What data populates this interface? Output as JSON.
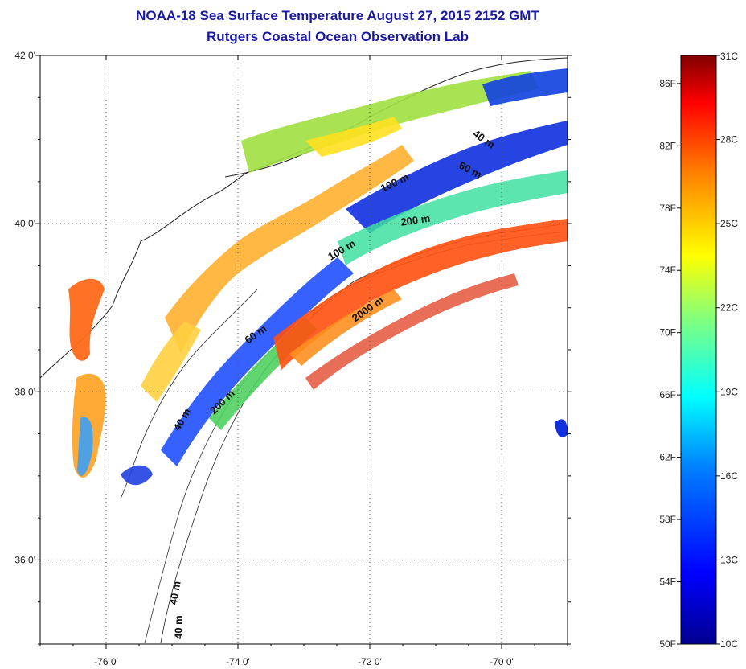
{
  "map": {
    "title": "NOAA-18 Sea Surface Temperature August 27, 2015 2152 GMT",
    "subtitle": "Rutgers Coastal Ocean Observation Lab",
    "x_ticks": [
      {
        "value": -76,
        "label": "-76 0'"
      },
      {
        "value": -74,
        "label": "-74 0'"
      },
      {
        "value": -72,
        "label": "-72 0'"
      },
      {
        "value": -70,
        "label": "-70 0'"
      }
    ],
    "y_ticks": [
      {
        "value": 42,
        "label": "42 0'"
      },
      {
        "value": 40,
        "label": "40 0'"
      },
      {
        "value": 38,
        "label": "38 0'"
      },
      {
        "value": 36,
        "label": "36 0'"
      }
    ],
    "lon_range": [
      -77,
      -69
    ],
    "lat_range": [
      35,
      42
    ],
    "grid": "dotted",
    "contour_labels": [
      {
        "text": "40 m",
        "lon": -70.3,
        "lat": 40.97,
        "angle": 35
      },
      {
        "text": "60 m",
        "lon": -70.5,
        "lat": 40.6,
        "angle": 28
      },
      {
        "text": "100 m",
        "lon": -71.6,
        "lat": 40.45,
        "angle": -25
      },
      {
        "text": "200 m",
        "lon": -71.3,
        "lat": 40.0,
        "angle": -8
      },
      {
        "text": "100 m",
        "lon": -72.4,
        "lat": 39.65,
        "angle": -30
      },
      {
        "text": "2000 m",
        "lon": -72.0,
        "lat": 38.95,
        "angle": -35
      },
      {
        "text": "60 m",
        "lon": -73.7,
        "lat": 38.65,
        "angle": -35
      },
      {
        "text": "200 m",
        "lon": -74.2,
        "lat": 37.85,
        "angle": -45
      },
      {
        "text": "40 m",
        "lon": -74.8,
        "lat": 37.65,
        "angle": -60
      },
      {
        "text": "40 m",
        "lon": -74.9,
        "lat": 35.6,
        "angle": -80
      },
      {
        "text": "40 m",
        "lon": -74.85,
        "lat": 35.2,
        "angle": -90
      }
    ]
  },
  "colorbar": {
    "range_c": [
      10,
      31
    ],
    "colors": [
      "#00008f",
      "#0000ff",
      "#0080ff",
      "#00ffff",
      "#80ff80",
      "#ffff00",
      "#ff8000",
      "#ff0000",
      "#800000"
    ],
    "celsius": [
      {
        "value": 31,
        "label": "31C"
      },
      {
        "value": 28,
        "label": "28C"
      },
      {
        "value": 25,
        "label": "25C"
      },
      {
        "value": 22,
        "label": "22C"
      },
      {
        "value": 19,
        "label": "19C"
      },
      {
        "value": 16,
        "label": "16C"
      },
      {
        "value": 13,
        "label": "13C"
      },
      {
        "value": 10,
        "label": "10C"
      }
    ],
    "fahrenheit": [
      {
        "value": 86,
        "label": "86F"
      },
      {
        "value": 82,
        "label": "82F"
      },
      {
        "value": 78,
        "label": "78F"
      },
      {
        "value": 74,
        "label": "74F"
      },
      {
        "value": 70,
        "label": "70F"
      },
      {
        "value": 66,
        "label": "66F"
      },
      {
        "value": 62,
        "label": "62F"
      },
      {
        "value": 58,
        "label": "58F"
      },
      {
        "value": 54,
        "label": "54F"
      },
      {
        "value": 50,
        "label": "50F"
      }
    ]
  }
}
